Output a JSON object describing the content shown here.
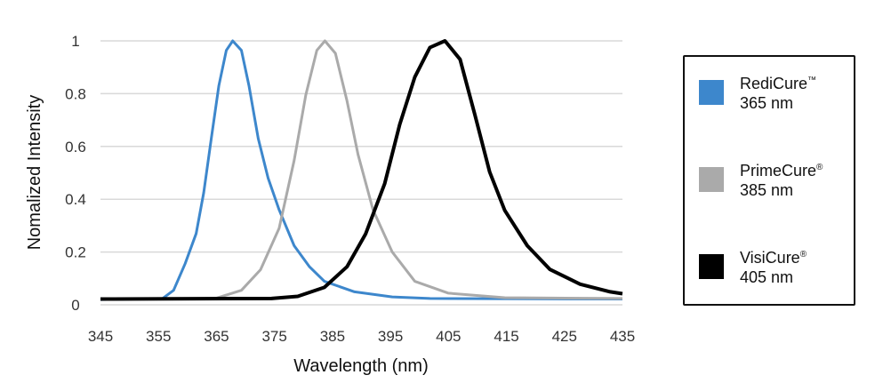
{
  "chart_data": {
    "type": "line",
    "title": "",
    "xlabel": "Wavelength (nm)",
    "ylabel": "Nomalized Intensity",
    "xlim": [
      345,
      435
    ],
    "ylim": [
      0,
      1
    ],
    "xticks": [
      "345",
      "355",
      "365",
      "375",
      "385",
      "395",
      "405",
      "415",
      "425",
      "435"
    ],
    "yticks": [
      "0",
      "0.2",
      "0.4",
      "0.6",
      "0.8",
      "1"
    ],
    "grid": "horizontal",
    "legend_position": "right",
    "series": [
      {
        "name": "RediCure™ 365 nm",
        "color": "#3d87cc",
        "x": [
          345,
          355.7,
          357.6,
          359.6,
          361.5,
          362.8,
          364.1,
          365.4,
          366.7,
          367.8,
          369.3,
          370.6,
          372.2,
          373.9,
          375.8,
          378.4,
          381,
          383.6,
          388.8,
          395.3,
          401.8,
          435
        ],
        "y": [
          0.02,
          0.024,
          0.055,
          0.156,
          0.27,
          0.425,
          0.63,
          0.83,
          0.964,
          1.0,
          0.964,
          0.83,
          0.63,
          0.48,
          0.36,
          0.224,
          0.145,
          0.089,
          0.049,
          0.03,
          0.024,
          0.022
        ]
      },
      {
        "name": "PrimeCure® 385 nm",
        "color": "#aaaaaa",
        "x": [
          345,
          364.8,
          369.3,
          372.6,
          375.8,
          378.4,
          380.4,
          382.3,
          383.7,
          385.5,
          387.5,
          389.4,
          392,
          395.3,
          399.2,
          405,
          414.7,
          435
        ],
        "y": [
          0.022,
          0.024,
          0.055,
          0.133,
          0.29,
          0.547,
          0.795,
          0.964,
          1.0,
          0.953,
          0.773,
          0.57,
          0.36,
          0.2,
          0.089,
          0.044,
          0.027,
          0.024
        ]
      },
      {
        "name": "VisiCure® 405 nm",
        "color": "#000000",
        "x": [
          345,
          374.5,
          379,
          383.6,
          387.5,
          390.7,
          394,
          396.6,
          399.2,
          401.8,
          404.4,
          407,
          409.6,
          412.1,
          414.7,
          418.6,
          422.5,
          427.7,
          432.9,
          435
        ],
        "y": [
          0.022,
          0.024,
          0.032,
          0.066,
          0.144,
          0.268,
          0.459,
          0.683,
          0.863,
          0.975,
          1.0,
          0.93,
          0.717,
          0.504,
          0.358,
          0.224,
          0.134,
          0.078,
          0.049,
          0.042
        ]
      }
    ]
  },
  "legend": [
    {
      "name": "RediCure",
      "mark": "™",
      "wavelength": "365 nm",
      "color": "#3d87cc"
    },
    {
      "name": "PrimeCure",
      "mark": "®",
      "wavelength": "385 nm",
      "color": "#aaaaaa"
    },
    {
      "name": "VisiCure",
      "mark": "®",
      "wavelength": "405 nm",
      "color": "#000000"
    }
  ]
}
